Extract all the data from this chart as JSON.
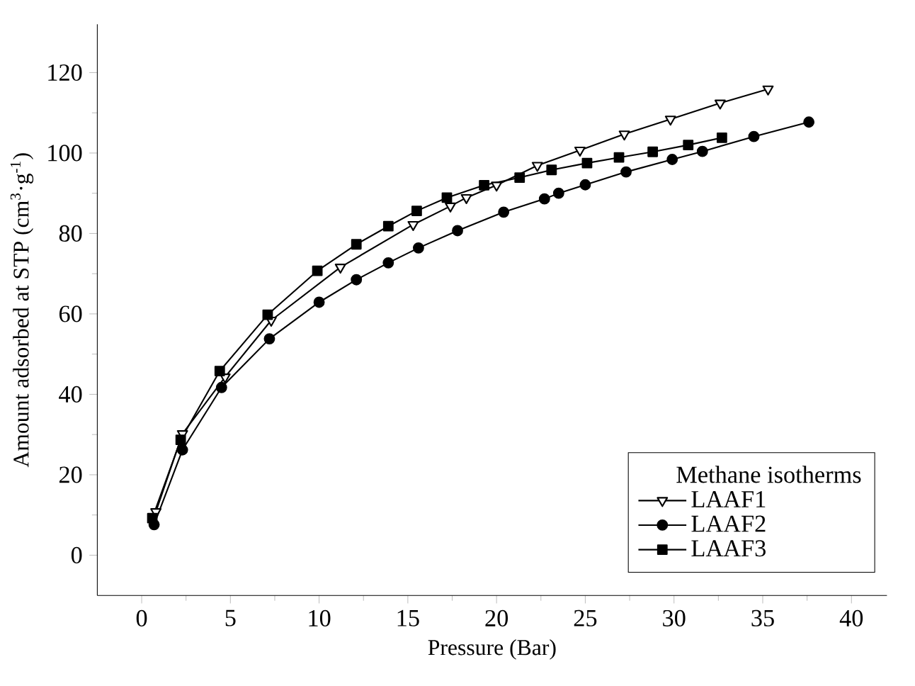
{
  "chart_data": {
    "type": "line",
    "xlabel": "Pressure (Bar)",
    "ylabel": "Amount adsorbed at STP (cm$^{3}$·g$^{-1}$)",
    "legend_title": "Methane isotherms",
    "xlim": [
      -2.5,
      42
    ],
    "ylim": [
      -10,
      132
    ],
    "xticks": [
      0,
      5,
      10,
      15,
      20,
      25,
      30,
      35,
      40
    ],
    "yticks": [
      0,
      20,
      40,
      60,
      80,
      100,
      120
    ],
    "grid": false,
    "legend": "bottom right",
    "series": [
      {
        "name": "LAAF1",
        "color": "#000000",
        "marker": "triangle",
        "x": [
          0.8,
          2.3,
          4.7,
          7.3,
          11.2,
          15.3,
          17.4,
          18.3,
          20.0,
          22.3,
          24.7,
          27.2,
          29.8,
          32.6,
          35.3
        ],
        "values": [
          10.8,
          30.2,
          44.3,
          58.4,
          71.6,
          82.2,
          86.8,
          88.9,
          92,
          96.9,
          100.7,
          104.7,
          108.4,
          112.4,
          115.9
        ]
      },
      {
        "name": "LAAF2",
        "color": "#000000",
        "marker": "circle",
        "x": [
          0.7,
          2.3,
          4.5,
          7.2,
          10.0,
          12.1,
          13.9,
          15.6,
          17.8,
          20.4,
          22.7,
          23.5,
          25.0,
          27.3,
          29.9,
          31.6,
          34.5,
          37.6
        ],
        "values": [
          7.6,
          26.2,
          41.7,
          53.8,
          62.9,
          68.5,
          72.7,
          76.4,
          80.7,
          85.3,
          88.6,
          90,
          92.1,
          95.3,
          98.4,
          100.4,
          104.1,
          107.7
        ]
      },
      {
        "name": "LAAF3",
        "color": "#000000",
        "marker": "square",
        "x": [
          0.6,
          2.2,
          4.4,
          7.1,
          9.9,
          12.1,
          13.9,
          15.5,
          17.2,
          19.3,
          21.3,
          23.1,
          25.1,
          26.9,
          28.8,
          30.8,
          32.7
        ],
        "values": [
          9.2,
          28.7,
          45.8,
          59.8,
          70.7,
          77.3,
          81.8,
          85.6,
          88.9,
          92,
          93.9,
          95.8,
          97.5,
          98.9,
          100.3,
          102,
          103.8
        ]
      }
    ]
  }
}
